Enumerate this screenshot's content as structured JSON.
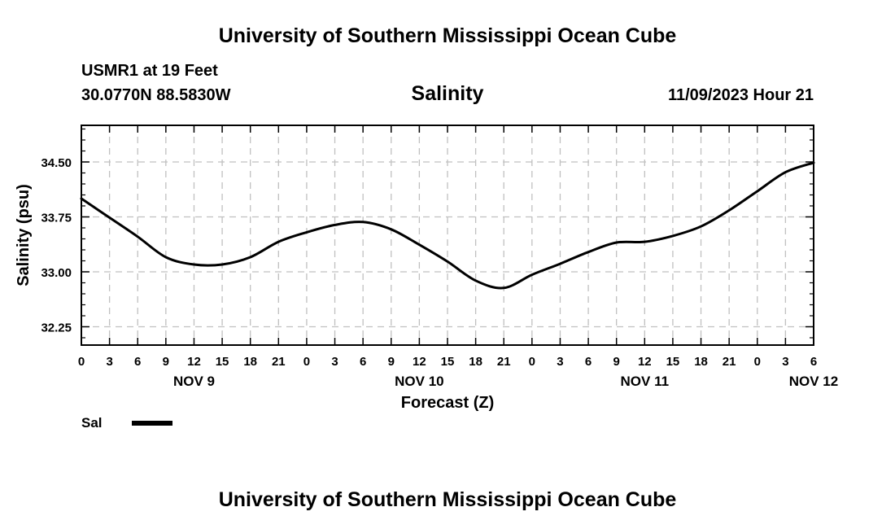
{
  "header": {
    "title": "University of Southern Mississippi Ocean Cube",
    "station": "USMR1 at 19 Feet",
    "coordinates": "30.0770N  88.5830W",
    "parameter": "Salinity",
    "datetime": "11/09/2023 Hour 21"
  },
  "footer": {
    "title": "University of Southern Mississippi Ocean Cube"
  },
  "legend": {
    "label": "Sal"
  },
  "chart_data": {
    "type": "line",
    "title": "Salinity",
    "xlabel": "Forecast (Z)",
    "ylabel": "Salinity (psu)",
    "x_unit": "forecast hours from Nov 9 00Z",
    "xlim": [
      0,
      78
    ],
    "ylim": [
      32.0,
      35.0
    ],
    "grid": true,
    "x_tick_values": [
      0,
      3,
      6,
      9,
      12,
      15,
      18,
      21,
      24,
      27,
      30,
      33,
      36,
      39,
      42,
      45,
      48,
      51,
      54,
      57,
      60,
      63,
      66,
      69,
      72,
      75,
      78
    ],
    "x_tick_labels": [
      "0",
      "3",
      "6",
      "9",
      "12",
      "15",
      "18",
      "21",
      "0",
      "3",
      "6",
      "9",
      "12",
      "15",
      "18",
      "21",
      "0",
      "3",
      "6",
      "9",
      "12",
      "15",
      "18",
      "21",
      "0",
      "3",
      "6"
    ],
    "date_labels": [
      {
        "hour": 12,
        "text": "NOV 9"
      },
      {
        "hour": 36,
        "text": "NOV 10"
      },
      {
        "hour": 60,
        "text": "NOV 11"
      },
      {
        "hour": 78,
        "text": "NOV 12"
      }
    ],
    "y_ticks": [
      32.25,
      33.0,
      33.75,
      34.5
    ],
    "y_tick_labels": [
      "32.25",
      "33.00",
      "33.75",
      "34.50"
    ],
    "y_minor_ticks": [
      32.1,
      32.4,
      32.55,
      32.7,
      32.85,
      33.15,
      33.3,
      33.45,
      33.6,
      33.9,
      34.05,
      34.2,
      34.35,
      34.65,
      34.8,
      34.95
    ],
    "series": [
      {
        "name": "Sal",
        "color": "#000000",
        "x": [
          0,
          3,
          6,
          9,
          12,
          15,
          18,
          21,
          24,
          27,
          30,
          33,
          36,
          39,
          42,
          45,
          48,
          51,
          54,
          57,
          60,
          63,
          66,
          69,
          72,
          75,
          78
        ],
        "values": [
          34.0,
          33.74,
          33.48,
          33.2,
          33.1,
          33.1,
          33.2,
          33.41,
          33.54,
          33.64,
          33.68,
          33.58,
          33.37,
          33.14,
          32.88,
          32.78,
          32.96,
          33.11,
          33.27,
          33.4,
          33.41,
          33.49,
          33.62,
          33.84,
          34.1,
          34.36,
          34.49
        ]
      }
    ]
  }
}
